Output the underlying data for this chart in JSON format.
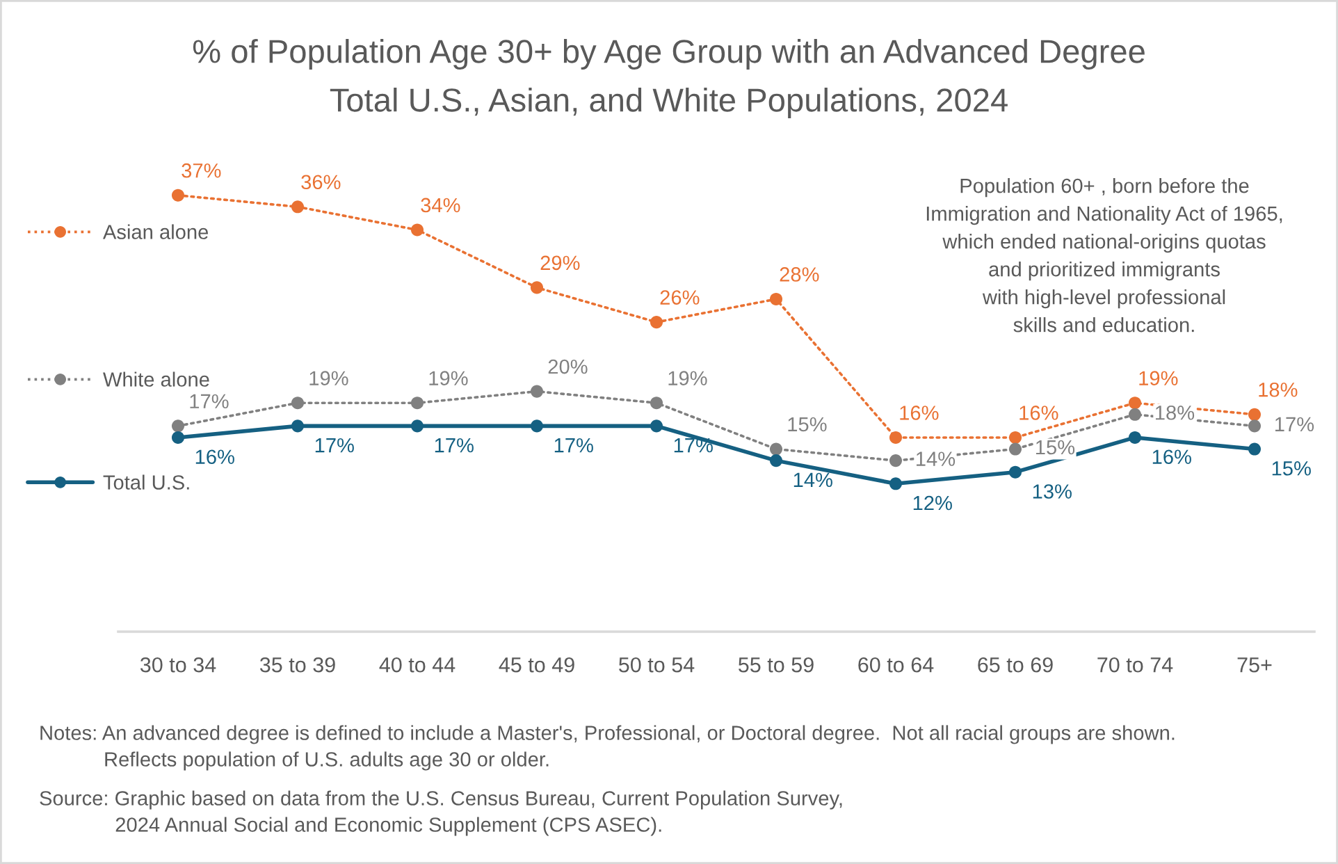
{
  "chart_data": {
    "type": "line",
    "title": "% of Population Age 30+ by Age Group with an Advanced Degree",
    "subtitle": "Total U.S., Asian, and White Populations, 2024",
    "categories": [
      "30 to 34",
      "35 to 39",
      "40 to 44",
      "45 to 49",
      "50 to 54",
      "55 to 59",
      "60 to 64",
      "65 to 69",
      "70 to 74",
      "75+"
    ],
    "series": [
      {
        "name": "Asian alone",
        "color": "#E97132",
        "line_style": "dotted",
        "values": [
          37,
          36,
          34,
          29,
          26,
          28,
          16,
          16,
          19,
          18
        ],
        "value_labels": [
          "37%",
          "36%",
          "34%",
          "29%",
          "26%",
          "28%",
          "16%",
          "16%",
          "19%",
          "18%"
        ]
      },
      {
        "name": "White alone",
        "color": "#808080",
        "line_style": "dotted",
        "values": [
          17,
          19,
          19,
          20,
          19,
          15,
          14,
          15,
          18,
          17
        ],
        "value_labels": [
          "17%",
          "19%",
          "19%",
          "20%",
          "19%",
          "15%",
          "14%",
          "15%",
          "18%",
          "17%"
        ]
      },
      {
        "name": "Total U.S.",
        "color": "#156082",
        "line_style": "solid",
        "values": [
          16,
          17,
          17,
          17,
          17,
          14,
          12,
          13,
          16,
          15
        ],
        "value_labels": [
          "16%",
          "17%",
          "17%",
          "17%",
          "17%",
          "14%",
          "12%",
          "13%",
          "16%",
          "15%"
        ]
      }
    ],
    "tick_labels": "x",
    "marker": "circle",
    "legend": "left",
    "annotations": [
      "Population 60+ , born before the\nImmigration and Nationality Act of 1965,\nwhich ended national-origins quotas\nand prioritized immigrants\nwith high-level professional\nskills and education.",
      "Notes: An advanced degree is defined to include a Master's, Professional, or Doctoral degree.  Not all racial groups are shown.\nReflects population of U.S. adults age 30 or older.",
      "Source: Graphic based on data from the U.S. Census Bureau, Current Population Survey,\n2024 Annual Social and Economic Supplement (CPS ASEC)."
    ]
  }
}
